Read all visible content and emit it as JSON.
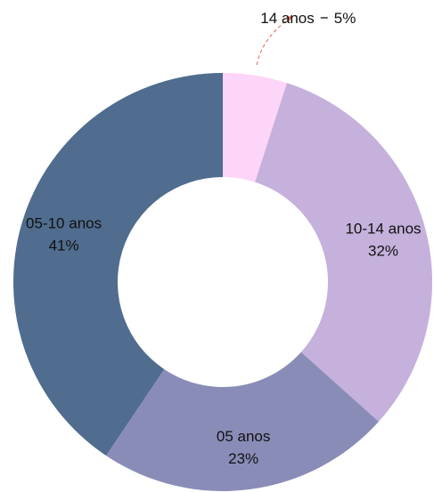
{
  "chart_data": {
    "type": "donut",
    "categories": [
      "14 anos",
      "10-14 anos",
      "05 anos",
      "05-10 anos"
    ],
    "values": [
      5,
      32,
      23,
      41
    ],
    "value_labels": [
      "5%",
      "32%",
      "23%",
      "41%"
    ],
    "colors": [
      "#fdd5f8",
      "#c5b1dc",
      "#8a8cb8",
      "#506c8e"
    ]
  }
}
